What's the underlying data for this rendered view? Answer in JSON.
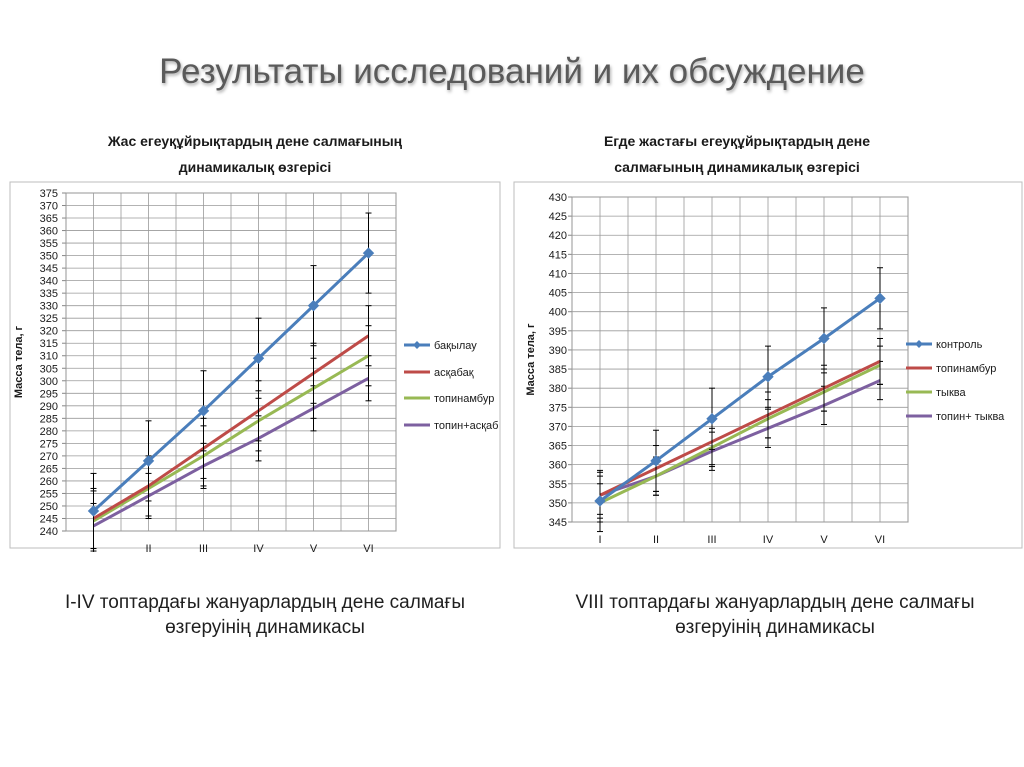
{
  "slide": {
    "title": "Результаты исследований и их обсуждение",
    "caption_left_line1": "I-IV топтардағы жануарлардың дене салмағы",
    "caption_left_line2": "өзгеруінің динамикасы",
    "caption_right_line1": "VIII топтардағы жануарлардың дене салмағы",
    "caption_right_line2": "өзгеруінің динамикасы"
  },
  "chart_data": [
    {
      "type": "line",
      "title": [
        "Жас егеуқұйрықтардың дене салмағының",
        "динамикалық  өзгерісі"
      ],
      "ylabel": "Масса тела, г",
      "xlabel": "",
      "categories": [
        "I",
        "II",
        "III",
        "IV",
        "V",
        "VI"
      ],
      "ylim": [
        240,
        375
      ],
      "ystep": 5,
      "grid": true,
      "legend_position": "right",
      "series": [
        {
          "name": "бақылау",
          "color": "#4a7ebb",
          "marker": true,
          "values": [
            248,
            268,
            288,
            309,
            330,
            351
          ],
          "errors": [
            15,
            16,
            16,
            16,
            16,
            16
          ]
        },
        {
          "name": "асқабақ",
          "color": "#be4b48",
          "marker": false,
          "values": [
            245,
            258,
            273,
            288,
            303,
            318
          ],
          "errors": [
            12,
            12,
            12,
            12,
            12,
            12
          ]
        },
        {
          "name": "топинамбур",
          "color": "#98b954",
          "marker": false,
          "values": [
            244,
            257,
            270,
            284,
            297,
            310
          ],
          "errors": [
            12,
            12,
            12,
            12,
            12,
            12
          ]
        },
        {
          "name": "топин+асқаб",
          "color": "#7d60a0",
          "marker": false,
          "values": [
            242,
            254,
            266,
            277,
            289,
            301
          ],
          "errors": [
            9,
            9,
            9,
            9,
            9,
            9
          ]
        }
      ]
    },
    {
      "type": "line",
      "title": [
        "Егде жастағы егеуқұйрықтардың дене",
        "салмағының динамикалық  өзгерісі"
      ],
      "ylabel": "Масса тела, г",
      "xlabel": "",
      "categories": [
        "I",
        "II",
        "III",
        "IV",
        "V",
        "VI"
      ],
      "ylim": [
        345,
        430
      ],
      "ystep": 5,
      "grid": true,
      "legend_position": "right",
      "series": [
        {
          "name": "контроль",
          "color": "#4a7ebb",
          "marker": true,
          "values": [
            350.5,
            361,
            372,
            383,
            393,
            403.5
          ],
          "errors": [
            8,
            8,
            8,
            8,
            8,
            8
          ]
        },
        {
          "name": "топинамбур",
          "color": "#be4b48",
          "marker": false,
          "values": [
            352,
            359,
            366,
            373,
            380,
            387
          ],
          "errors": [
            6,
            6,
            6,
            6,
            6,
            6
          ]
        },
        {
          "name": "тыква",
          "color": "#98b954",
          "marker": false,
          "values": [
            350,
            357,
            364.5,
            372,
            379,
            386
          ],
          "errors": [
            5,
            5,
            5,
            5,
            5,
            5
          ]
        },
        {
          "name": "топин+ тыква",
          "color": "#7d60a0",
          "marker": false,
          "values": [
            352,
            357,
            363.5,
            369.5,
            375.5,
            382
          ],
          "errors": [
            5,
            5,
            5,
            5,
            5,
            5
          ]
        }
      ]
    }
  ]
}
